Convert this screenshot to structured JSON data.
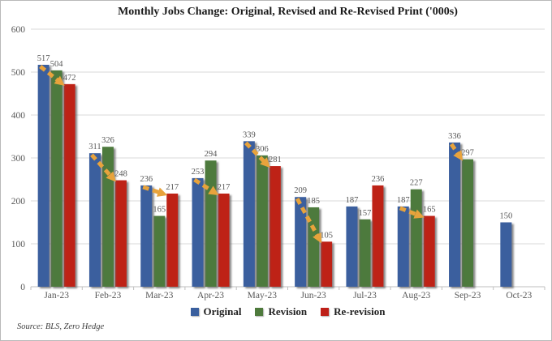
{
  "chart_data": {
    "type": "bar",
    "title": "Monthly Jobs Change: Original, Revised and Re-Revised Print ('000s)",
    "source": "Source: BLS, Zero Hedge",
    "categories": [
      "Jan-23",
      "Feb-23",
      "Mar-23",
      "Apr-23",
      "May-23",
      "Jun-23",
      "Jul-23",
      "Aug-23",
      "Sep-23",
      "Oct-23"
    ],
    "series": [
      {
        "name": "Original",
        "color": "#3A5F9E",
        "values": [
          517,
          311,
          236,
          253,
          339,
          209,
          187,
          187,
          336,
          150
        ]
      },
      {
        "name": "Revision",
        "color": "#4E7A3C",
        "values": [
          504,
          326,
          165,
          294,
          306,
          185,
          157,
          227,
          297,
          null
        ]
      },
      {
        "name": "Re-revision",
        "color": "#BE2018",
        "values": [
          472,
          248,
          217,
          217,
          281,
          105,
          236,
          165,
          null,
          null
        ]
      }
    ],
    "ylim": [
      0,
      600
    ],
    "ytick_step": 100,
    "grid": true,
    "legend_position": "bottom",
    "annotation_arrows": [
      {
        "category": "Jan-23",
        "from": "Original",
        "to": "Re-revision"
      },
      {
        "category": "Feb-23",
        "from": "Original",
        "to": "Re-revision"
      },
      {
        "category": "Mar-23",
        "from": "Original",
        "to": "Re-revision"
      },
      {
        "category": "Apr-23",
        "from": "Original",
        "to": "Re-revision"
      },
      {
        "category": "May-23",
        "from": "Original",
        "to": "Re-revision"
      },
      {
        "category": "Jun-23",
        "from": "Original",
        "to": "Re-revision"
      },
      {
        "category": "Aug-23",
        "from": "Original",
        "to": "Re-revision"
      },
      {
        "category": "Sep-23",
        "from": "Original",
        "to": "Revision"
      }
    ],
    "arrow_color": "#E8A33C"
  },
  "colors": {
    "grid": "#D9D9D9",
    "axis": "#BFBFBF",
    "tick_label": "#595959",
    "value_label": "#565656"
  }
}
